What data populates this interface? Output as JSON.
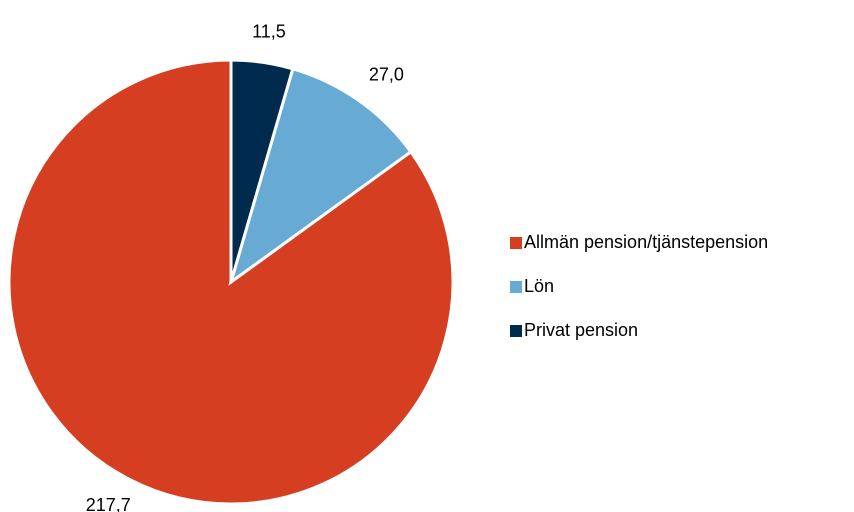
{
  "chart_data": {
    "type": "pie",
    "categories": [
      "Allmän pension/tjänstepension",
      "Lön",
      "Privat pension"
    ],
    "values": [
      217.7,
      27.0,
      11.5
    ],
    "value_labels": [
      "217,7",
      "27,0",
      "11,5"
    ],
    "colors": [
      "#d53e21",
      "#67aad4",
      "#002b4f"
    ],
    "legend": "right"
  }
}
